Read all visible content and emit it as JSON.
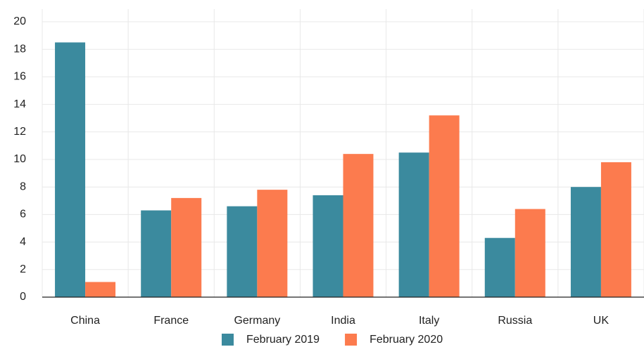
{
  "chart_data": {
    "type": "bar",
    "categories": [
      "China",
      "France",
      "Germany",
      "India",
      "Italy",
      "Russia",
      "UK"
    ],
    "series": [
      {
        "name": "February 2019",
        "color": "#3b8a9e",
        "values": [
          18.5,
          6.3,
          6.6,
          7.4,
          10.5,
          4.3,
          8.0
        ]
      },
      {
        "name": "February 2020",
        "color": "#fc7b4e",
        "values": [
          1.1,
          7.2,
          7.8,
          10.4,
          13.2,
          6.4,
          9.8
        ]
      }
    ],
    "ylim": [
      0,
      20
    ],
    "yticks": [
      0,
      2,
      4,
      6,
      8,
      10,
      12,
      14,
      16,
      18,
      20
    ],
    "grid": true,
    "legend": "bottom"
  }
}
